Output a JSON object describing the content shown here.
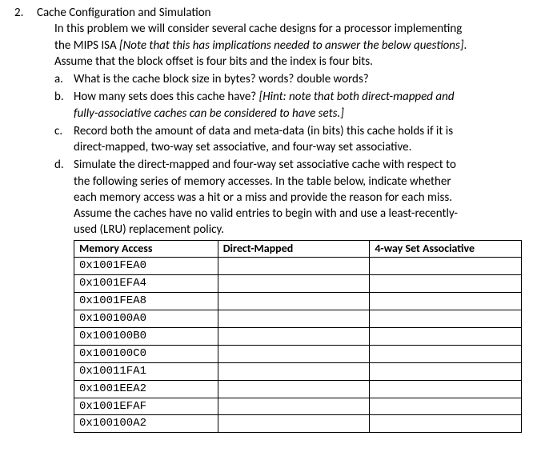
{
  "question": {
    "number": "2.",
    "title": "Cache Configuration and Simulation",
    "intro_line1": "In this problem we will consider several cache designs for a processor implementing",
    "intro_line2a": "the MIPS ISA ",
    "intro_line2b_italic": "[Note that this has implications needed to answer the below questions]",
    "intro_line2c": ".",
    "intro_line3": "Assume that the block offset is four bits and the index is four bits."
  },
  "parts": {
    "a": {
      "letter": "a.",
      "text": "What is the cache block size in bytes? words? double words?"
    },
    "b": {
      "letter": "b.",
      "line1": "How many sets does this cache have? ",
      "hint_italic": "[Hint: note that both direct-mapped and",
      "hint_italic2": "fully-associative caches can be considered to have sets.]"
    },
    "c": {
      "letter": "c.",
      "line1": "Record both the amount of data and meta-data (in bits) this cache holds if it is",
      "line2": "direct-mapped, two-way set associative, and four-way set associative."
    },
    "d": {
      "letter": "d.",
      "line1": "Simulate the direct-mapped and four-way set associative cache with respect to",
      "line2": "the following series of memory accesses. In the table below, indicate whether",
      "line3": "each memory access was a hit or a miss and provide the reason for each miss.",
      "line4": "Assume the caches have no valid entries to begin with and use a least-recently-",
      "line5": "used (LRU) replacement policy."
    }
  },
  "table": {
    "headers": {
      "mem": "Memory Access",
      "dm": "Direct-Mapped",
      "fw": "4-way Set Associative"
    },
    "rows": [
      {
        "mem": "0x1001FEA0",
        "dm": "",
        "fw": ""
      },
      {
        "mem": "0x1001EFA4",
        "dm": "",
        "fw": ""
      },
      {
        "mem": "0x1001FEA8",
        "dm": "",
        "fw": ""
      },
      {
        "mem": "0x100100A0",
        "dm": "",
        "fw": ""
      },
      {
        "mem": "0x100100B0",
        "dm": "",
        "fw": ""
      },
      {
        "mem": "0x100100C0",
        "dm": "",
        "fw": ""
      },
      {
        "mem": "0x10011FA1",
        "dm": "",
        "fw": ""
      },
      {
        "mem": "0x1001EEA2",
        "dm": "",
        "fw": ""
      },
      {
        "mem": "0x1001EFAF",
        "dm": "",
        "fw": ""
      },
      {
        "mem": "0x100100A2",
        "dm": "",
        "fw": ""
      }
    ]
  }
}
